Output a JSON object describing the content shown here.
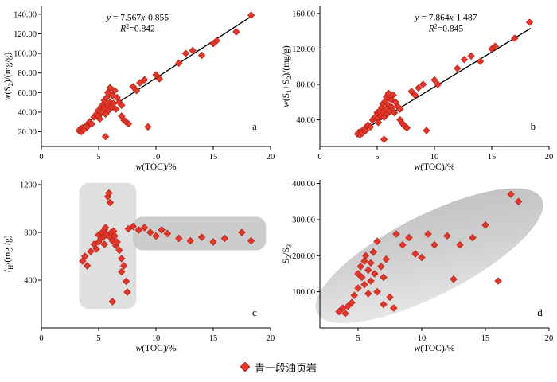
{
  "legend": {
    "label": "青一段油页岩",
    "marker_color": "#e2382b",
    "marker_edge": "#b81f14"
  },
  "colors": {
    "marker": "#e2382b",
    "marker_edge": "#b81f14",
    "axis": "#000000",
    "region_light": "#dcdcdc",
    "region_dark": "#c6c6c6"
  },
  "chart_data": [
    {
      "id": "a",
      "type": "scatter",
      "xlabel_parts": [
        [
          "w",
          "i"
        ],
        [
          "(TOC)/%",
          ""
        ]
      ],
      "ylabel_parts": [
        [
          "w",
          "i"
        ],
        [
          "(S",
          ""
        ],
        [
          "2",
          "sub"
        ],
        [
          ")/(mg/g)",
          ""
        ]
      ],
      "xlim": [
        0,
        20
      ],
      "ylim": [
        5,
        148
      ],
      "xticks": [
        0,
        5,
        10,
        15,
        20
      ],
      "yticks": [
        20,
        40,
        60,
        80,
        100,
        120,
        140
      ],
      "xtick_decimals": 0,
      "ytick_decimals": 2,
      "points": [
        [
          3.3,
          21
        ],
        [
          3.4,
          23
        ],
        [
          3.5,
          20
        ],
        [
          3.6,
          24
        ],
        [
          3.7,
          22
        ],
        [
          3.9,
          26
        ],
        [
          4.0,
          25
        ],
        [
          4.2,
          30
        ],
        [
          4.4,
          28
        ],
        [
          4.6,
          35
        ],
        [
          4.8,
          38
        ],
        [
          5.0,
          36
        ],
        [
          5.0,
          42
        ],
        [
          5.1,
          33
        ],
        [
          5.2,
          45
        ],
        [
          5.3,
          40
        ],
        [
          5.4,
          48
        ],
        [
          5.5,
          44
        ],
        [
          5.5,
          52
        ],
        [
          5.6,
          38
        ],
        [
          5.7,
          55
        ],
        [
          5.8,
          47
        ],
        [
          5.8,
          60
        ],
        [
          5.9,
          42
        ],
        [
          6.0,
          50
        ],
        [
          6.0,
          65
        ],
        [
          6.1,
          45
        ],
        [
          6.2,
          57
        ],
        [
          6.3,
          49
        ],
        [
          6.4,
          62
        ],
        [
          6.5,
          43
        ],
        [
          6.6,
          55
        ],
        [
          6.8,
          50
        ],
        [
          7.0,
          47
        ],
        [
          7.0,
          36
        ],
        [
          7.2,
          32
        ],
        [
          7.4,
          30
        ],
        [
          7.6,
          28
        ],
        [
          5.6,
          15
        ],
        [
          8.0,
          66
        ],
        [
          8.3,
          62
        ],
        [
          8.6,
          70
        ],
        [
          9.0,
          73
        ],
        [
          9.3,
          25
        ],
        [
          10.0,
          78
        ],
        [
          10.3,
          74
        ],
        [
          12.0,
          90
        ],
        [
          12.6,
          100
        ],
        [
          13.2,
          103
        ],
        [
          14.0,
          98
        ],
        [
          15.0,
          110
        ],
        [
          15.3,
          113
        ],
        [
          17.0,
          122
        ],
        [
          18.3,
          139
        ]
      ],
      "line": {
        "slope": 7.567,
        "intercept": -0.855,
        "x1": 3.2,
        "x2": 18.4
      },
      "equation": [
        [
          [
            "y",
            "i"
          ],
          [
            " = 7.567",
            ""
          ],
          [
            "x",
            "i"
          ],
          [
            "-0.855",
            ""
          ]
        ],
        [
          [
            "R",
            "i"
          ],
          [
            "2",
            "sup"
          ],
          [
            "=0.842",
            ""
          ]
        ]
      ],
      "eq_pos": [
        0.42,
        0.1
      ],
      "panel_label": "a",
      "panel_pos": [
        0.93,
        0.88
      ]
    },
    {
      "id": "b",
      "type": "scatter",
      "xlabel_parts": [
        [
          "w",
          "i"
        ],
        [
          "(TOC)/%",
          ""
        ]
      ],
      "ylabel_parts": [
        [
          "w",
          "i"
        ],
        [
          "(S",
          ""
        ],
        [
          "1",
          "sub"
        ],
        [
          "+S",
          ""
        ],
        [
          "2",
          "sub"
        ],
        [
          ")/(mg/g)",
          ""
        ]
      ],
      "xlim": [
        0,
        20
      ],
      "ylim": [
        10,
        168
      ],
      "xticks": [
        0,
        5,
        10,
        15,
        20
      ],
      "yticks": [
        40,
        80,
        120,
        160
      ],
      "xtick_decimals": 0,
      "ytick_decimals": 2,
      "points": [
        [
          3.3,
          24
        ],
        [
          3.4,
          26
        ],
        [
          3.5,
          23
        ],
        [
          3.6,
          27
        ],
        [
          3.7,
          25
        ],
        [
          3.9,
          30
        ],
        [
          4.0,
          28
        ],
        [
          4.2,
          34
        ],
        [
          4.4,
          32
        ],
        [
          4.6,
          40
        ],
        [
          4.8,
          43
        ],
        [
          5.0,
          41
        ],
        [
          5.0,
          48
        ],
        [
          5.1,
          37
        ],
        [
          5.2,
          50
        ],
        [
          5.3,
          45
        ],
        [
          5.4,
          54
        ],
        [
          5.5,
          49
        ],
        [
          5.5,
          58
        ],
        [
          5.6,
          43
        ],
        [
          5.7,
          61
        ],
        [
          5.8,
          52
        ],
        [
          5.8,
          66
        ],
        [
          5.9,
          47
        ],
        [
          6.0,
          56
        ],
        [
          6.0,
          70
        ],
        [
          6.1,
          50
        ],
        [
          6.2,
          63
        ],
        [
          6.3,
          54
        ],
        [
          6.4,
          68
        ],
        [
          6.5,
          48
        ],
        [
          6.6,
          60
        ],
        [
          6.8,
          55
        ],
        [
          7.0,
          52
        ],
        [
          7.0,
          40
        ],
        [
          7.2,
          36
        ],
        [
          7.4,
          33
        ],
        [
          7.6,
          31
        ],
        [
          5.6,
          18
        ],
        [
          8.0,
          72
        ],
        [
          8.3,
          68
        ],
        [
          8.6,
          76
        ],
        [
          9.0,
          80
        ],
        [
          9.3,
          28
        ],
        [
          10.0,
          85
        ],
        [
          10.3,
          80
        ],
        [
          12.0,
          98
        ],
        [
          12.6,
          108
        ],
        [
          13.2,
          112
        ],
        [
          14.0,
          106
        ],
        [
          15.0,
          120
        ],
        [
          15.3,
          123
        ],
        [
          17.0,
          132
        ],
        [
          18.3,
          150
        ]
      ],
      "line": {
        "slope": 7.864,
        "intercept": -1.487,
        "x1": 3.2,
        "x2": 18.4
      },
      "equation": [
        [
          [
            "y",
            "i"
          ],
          [
            " = 7.864",
            ""
          ],
          [
            "x",
            "i"
          ],
          [
            "-1.487",
            ""
          ]
        ],
        [
          [
            "R",
            "i"
          ],
          [
            "2",
            "sup"
          ],
          [
            "=0.845",
            ""
          ]
        ]
      ],
      "eq_pos": [
        0.55,
        0.1
      ],
      "panel_label": "b",
      "panel_pos": [
        0.93,
        0.88
      ]
    },
    {
      "id": "c",
      "type": "scatter",
      "xlabel_parts": [
        [
          "w",
          "i"
        ],
        [
          "(TOC)/%",
          ""
        ]
      ],
      "ylabel_parts": [
        [
          "I",
          "i"
        ],
        [
          "H",
          "sub"
        ],
        [
          "/(mg /g)",
          ""
        ]
      ],
      "xlim": [
        0,
        20
      ],
      "ylim": [
        0,
        1240
      ],
      "xticks": [
        0,
        5,
        10,
        15,
        20
      ],
      "yticks": [
        400,
        800,
        1200
      ],
      "xtick_decimals": 0,
      "ytick_decimals": 0,
      "points": [
        [
          3.6,
          560
        ],
        [
          3.8,
          600
        ],
        [
          4.0,
          520
        ],
        [
          4.3,
          640
        ],
        [
          4.6,
          700
        ],
        [
          4.8,
          660
        ],
        [
          5.0,
          720
        ],
        [
          5.0,
          780
        ],
        [
          5.2,
          750
        ],
        [
          5.3,
          800
        ],
        [
          5.4,
          760
        ],
        [
          5.5,
          820
        ],
        [
          5.5,
          700
        ],
        [
          5.6,
          840
        ],
        [
          5.7,
          780
        ],
        [
          5.8,
          1100
        ],
        [
          5.9,
          1130
        ],
        [
          6.0,
          1050
        ],
        [
          6.0,
          760
        ],
        [
          6.1,
          800
        ],
        [
          6.2,
          730
        ],
        [
          6.3,
          810
        ],
        [
          6.4,
          770
        ],
        [
          6.5,
          690
        ],
        [
          6.6,
          720
        ],
        [
          6.8,
          650
        ],
        [
          7.0,
          580
        ],
        [
          7.0,
          470
        ],
        [
          7.2,
          520
        ],
        [
          7.4,
          390
        ],
        [
          7.5,
          300
        ],
        [
          6.2,
          220
        ],
        [
          7.6,
          830
        ],
        [
          8.0,
          850
        ],
        [
          8.5,
          820
        ],
        [
          9.0,
          840
        ],
        [
          9.5,
          800
        ],
        [
          10.0,
          770
        ],
        [
          10.5,
          820
        ],
        [
          11.0,
          790
        ],
        [
          12.0,
          750
        ],
        [
          13.0,
          730
        ],
        [
          14.0,
          760
        ],
        [
          15.0,
          720
        ],
        [
          16.0,
          750
        ],
        [
          17.5,
          800
        ],
        [
          18.3,
          730
        ]
      ],
      "regions": [
        {
          "x1": 3.3,
          "x2": 8.3,
          "y1": 160,
          "y2": 1215,
          "fill": "#dcdcdc",
          "opacity": 0.9
        },
        {
          "x1": 8.0,
          "x2": 19.6,
          "y1": 650,
          "y2": 930,
          "fill": "#c6c6c6",
          "opacity": 0.9
        }
      ],
      "panel_label": "c",
      "panel_pos": [
        0.93,
        0.92
      ]
    },
    {
      "id": "d",
      "type": "scatter",
      "xlabel_parts": [
        [
          "w",
          "i"
        ],
        [
          "(TOC)/%",
          ""
        ]
      ],
      "ylabel_parts": [
        [
          "S",
          ""
        ],
        [
          "2",
          "sub"
        ],
        [
          "/S",
          ""
        ],
        [
          "3",
          "sub"
        ]
      ],
      "xlim": [
        2,
        20
      ],
      "ylim": [
        0,
        410
      ],
      "xticks": [
        5,
        10,
        15,
        20
      ],
      "yticks": [
        100,
        200,
        300,
        400
      ],
      "xtick_decimals": 0,
      "ytick_decimals": 2,
      "ellipse": {
        "cx": 10.6,
        "cy": 200,
        "rx_frac": 0.55,
        "ry_frac": 0.27,
        "rot": -27
      },
      "points": [
        [
          3.5,
          45
        ],
        [
          3.8,
          55
        ],
        [
          4.0,
          40
        ],
        [
          4.2,
          60
        ],
        [
          4.5,
          70
        ],
        [
          4.7,
          90
        ],
        [
          5.0,
          110
        ],
        [
          5.0,
          150
        ],
        [
          5.2,
          170
        ],
        [
          5.3,
          140
        ],
        [
          5.5,
          185
        ],
        [
          5.5,
          120
        ],
        [
          5.6,
          200
        ],
        [
          5.8,
          160
        ],
        [
          5.8,
          95
        ],
        [
          6.0,
          180
        ],
        [
          6.0,
          130
        ],
        [
          6.2,
          210
        ],
        [
          6.3,
          150
        ],
        [
          6.5,
          240
        ],
        [
          6.5,
          100
        ],
        [
          6.8,
          170
        ],
        [
          7.0,
          140
        ],
        [
          7.0,
          65
        ],
        [
          7.2,
          190
        ],
        [
          7.5,
          85
        ],
        [
          7.8,
          55
        ],
        [
          8.0,
          260
        ],
        [
          8.5,
          230
        ],
        [
          9.0,
          250
        ],
        [
          9.5,
          205
        ],
        [
          10.0,
          195
        ],
        [
          10.5,
          260
        ],
        [
          11.0,
          230
        ],
        [
          12.0,
          255
        ],
        [
          12.5,
          135
        ],
        [
          13.0,
          230
        ],
        [
          14.0,
          250
        ],
        [
          15.0,
          285
        ],
        [
          16.0,
          130
        ],
        [
          17.0,
          370
        ],
        [
          17.6,
          350
        ]
      ],
      "panel_label": "d",
      "panel_pos": [
        0.96,
        0.92
      ]
    }
  ]
}
